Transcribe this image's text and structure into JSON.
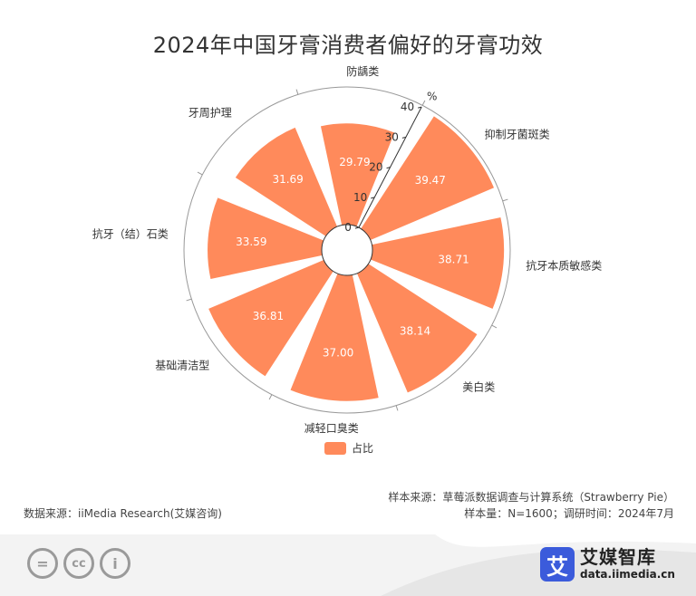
{
  "title": "2024年中国牙膏消费者偏好的牙膏功效",
  "chart_data": {
    "type": "polar-bar",
    "title": "2024年中国牙膏消费者偏好的牙膏功效",
    "radial_axis": {
      "unit": "%",
      "range": [
        0,
        40
      ],
      "ticks": [
        "0",
        "10",
        "20",
        "30",
        "40"
      ]
    },
    "categories": [
      "防龋类",
      "抑制牙菌斑类",
      "抗牙本质敏感类",
      "美白类",
      "减轻口臭类",
      "基础清洁型",
      "抗牙（结）石类",
      "牙周护理"
    ],
    "series": [
      {
        "name": "占比",
        "values": [
          29.79,
          39.47,
          38.71,
          38.14,
          37.0,
          36.81,
          33.59,
          31.69
        ],
        "labels": [
          "29.79",
          "39.47",
          "38.71",
          "38.14",
          "37.00",
          "36.81",
          "33.59",
          "31.69"
        ]
      }
    ],
    "color": "#FF8A5B",
    "legend": "bottom-center"
  },
  "footer": {
    "source": "数据来源：iiMedia Research(艾媒咨询)",
    "sample_source": "样本来源：草莓派数据调查与计算系统（Strawberry Pie）",
    "sample_info": "样本量：N=1600；调研时间：2024年7月"
  },
  "brand": {
    "mark": "艾",
    "name": "艾媒智库",
    "url": "data.iimedia.cn"
  },
  "cc_icons": [
    "equals-icon",
    "cc-icon",
    "person-icon"
  ],
  "cc_text": {
    "equal": "=",
    "cc": "cc",
    "person": "i"
  }
}
